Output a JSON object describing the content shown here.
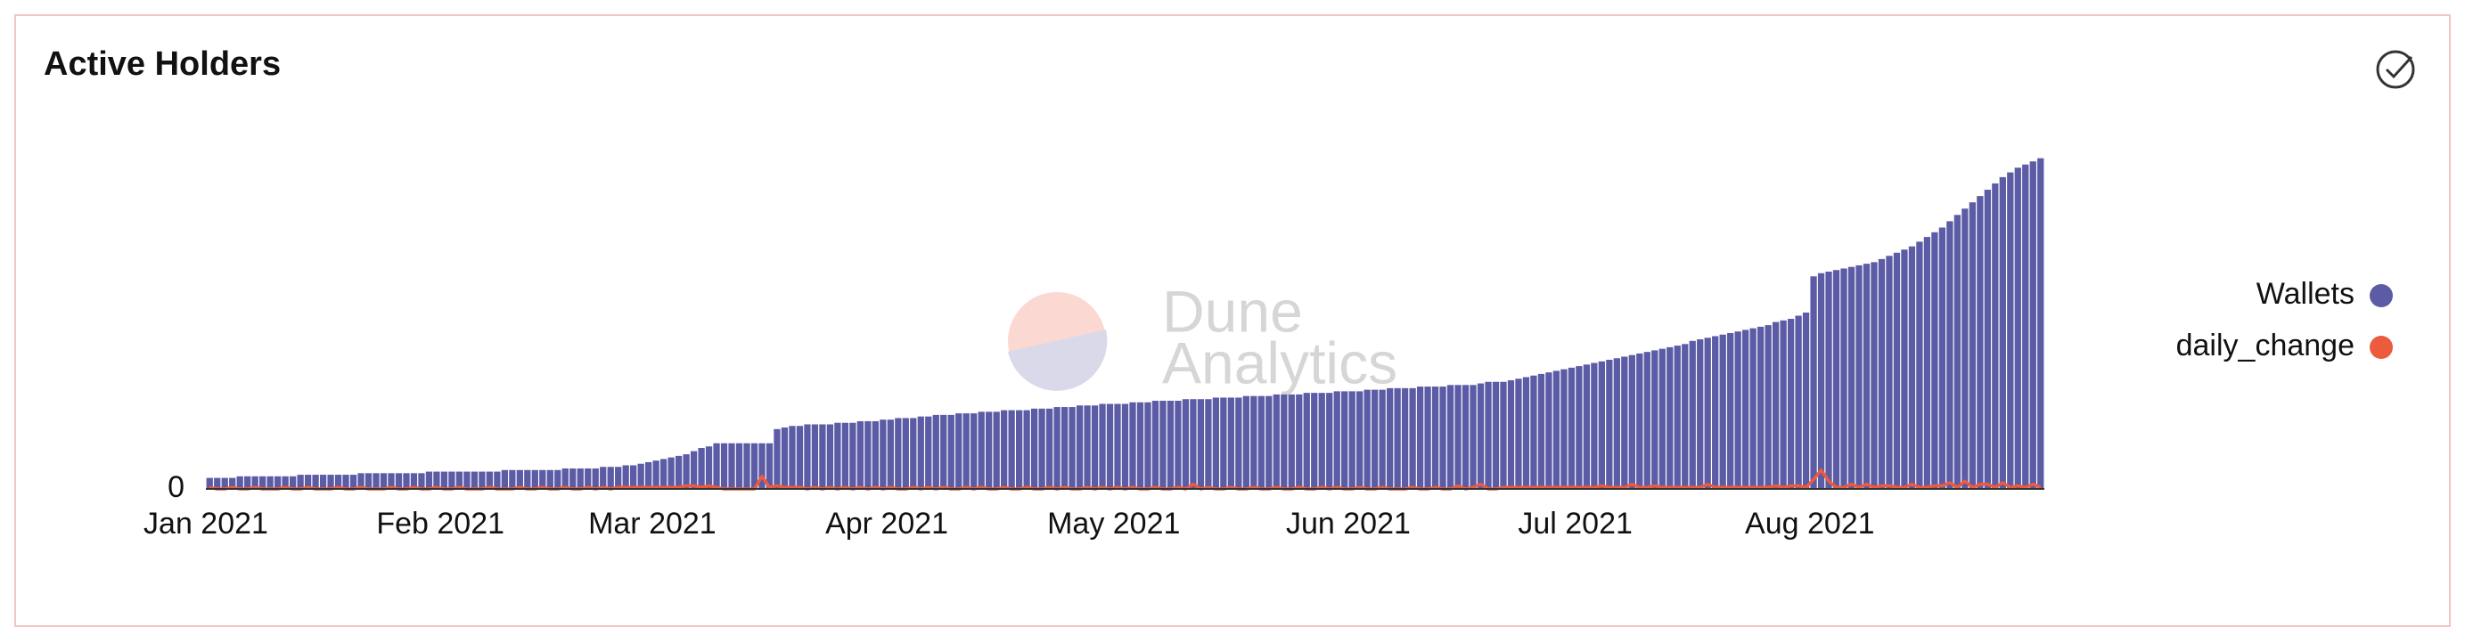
{
  "chart_data": {
    "type": "bar",
    "title": "Active Holders",
    "watermark": [
      "Dune",
      "Analytics"
    ],
    "ylim": [
      0,
      220
    ],
    "yticks": [
      0
    ],
    "legend": "right",
    "categories": [
      "Jan 2021",
      null,
      null,
      null,
      null,
      null,
      null,
      null,
      null,
      null,
      null,
      null,
      null,
      null,
      null,
      null,
      null,
      null,
      null,
      null,
      null,
      null,
      null,
      null,
      null,
      null,
      null,
      null,
      null,
      null,
      null,
      "Feb 2021",
      null,
      null,
      null,
      null,
      null,
      null,
      null,
      null,
      null,
      null,
      null,
      null,
      null,
      null,
      null,
      null,
      null,
      null,
      null,
      null,
      null,
      null,
      null,
      null,
      null,
      null,
      null,
      "Mar 2021",
      null,
      null,
      null,
      null,
      null,
      null,
      null,
      null,
      null,
      null,
      null,
      null,
      null,
      null,
      null,
      null,
      null,
      null,
      null,
      null,
      null,
      null,
      null,
      null,
      null,
      null,
      null,
      null,
      null,
      null,
      "Apr 2021",
      null,
      null,
      null,
      null,
      null,
      null,
      null,
      null,
      null,
      null,
      null,
      null,
      null,
      null,
      null,
      null,
      null,
      null,
      null,
      null,
      null,
      null,
      null,
      null,
      null,
      null,
      null,
      null,
      null,
      "May 2021",
      null,
      null,
      null,
      null,
      null,
      null,
      null,
      null,
      null,
      null,
      null,
      null,
      null,
      null,
      null,
      null,
      null,
      null,
      null,
      null,
      null,
      null,
      null,
      null,
      null,
      null,
      null,
      null,
      null,
      null,
      "Jun 2021",
      null,
      null,
      null,
      null,
      null,
      null,
      null,
      null,
      null,
      null,
      null,
      null,
      null,
      null,
      null,
      null,
      null,
      null,
      null,
      null,
      null,
      null,
      null,
      null,
      null,
      null,
      null,
      null,
      null,
      "Jul 2021",
      null,
      null,
      null,
      null,
      null,
      null,
      null,
      null,
      null,
      null,
      null,
      null,
      null,
      null,
      null,
      null,
      null,
      null,
      null,
      null,
      null,
      null,
      null,
      null,
      null,
      null,
      null,
      null,
      null,
      null,
      "Aug 2021",
      null,
      null,
      null,
      null,
      null,
      null,
      null,
      null,
      null,
      null,
      null,
      null,
      null,
      null,
      null,
      null,
      null,
      null,
      null,
      null,
      null,
      null,
      null,
      null,
      null,
      null,
      null,
      null,
      null,
      null
    ],
    "series": [
      {
        "name": "Wallets",
        "type": "bar",
        "color": "#5b5ba6",
        "values": [
          7,
          7,
          7,
          7,
          8,
          8,
          8,
          8,
          8,
          8,
          8,
          8,
          9,
          9,
          9,
          9,
          9,
          9,
          9,
          9,
          10,
          10,
          10,
          10,
          10,
          10,
          10,
          10,
          10,
          11,
          11,
          11,
          11,
          11,
          11,
          11,
          11,
          11,
          11,
          12,
          12,
          12,
          12,
          12,
          12,
          12,
          12,
          13,
          13,
          13,
          13,
          13,
          14,
          14,
          14,
          15,
          15,
          16,
          17,
          18,
          19,
          20,
          21,
          22,
          24,
          26,
          27,
          29,
          29,
          29,
          29,
          29,
          29,
          29,
          29,
          38,
          39,
          40,
          40,
          41,
          41,
          41,
          41,
          42,
          42,
          42,
          43,
          43,
          43,
          44,
          44,
          45,
          45,
          45,
          46,
          46,
          47,
          47,
          47,
          48,
          48,
          48,
          49,
          49,
          49,
          50,
          50,
          50,
          50,
          51,
          51,
          51,
          52,
          52,
          52,
          53,
          53,
          53,
          54,
          54,
          54,
          54,
          55,
          55,
          55,
          56,
          56,
          56,
          56,
          57,
          57,
          57,
          57,
          58,
          58,
          58,
          58,
          59,
          59,
          59,
          59,
          60,
          60,
          60,
          60,
          61,
          61,
          61,
          61,
          62,
          62,
          62,
          62,
          63,
          63,
          63,
          64,
          64,
          64,
          64,
          65,
          65,
          65,
          65,
          66,
          66,
          66,
          66,
          67,
          68,
          68,
          68,
          69,
          70,
          71,
          72,
          73,
          74,
          75,
          76,
          77,
          78,
          79,
          80,
          81,
          82,
          83,
          84,
          85,
          86,
          87,
          88,
          89,
          90,
          91,
          92,
          94,
          95,
          96,
          97,
          98,
          99,
          100,
          101,
          102,
          103,
          104,
          106,
          107,
          108,
          110,
          112,
          135,
          137,
          138,
          139,
          140,
          141,
          142,
          143,
          144,
          146,
          148,
          150,
          152,
          154,
          157,
          160,
          163,
          166,
          170,
          174,
          178,
          182,
          186,
          190,
          194,
          198,
          201,
          204,
          206,
          208,
          210
        ]
      },
      {
        "name": "daily_change",
        "type": "line",
        "color": "#ec5b3d",
        "values": [
          1,
          0,
          0,
          1,
          0,
          0,
          1,
          0,
          0,
          0,
          1,
          0,
          0,
          1,
          0,
          0,
          0,
          1,
          0,
          0,
          1,
          0,
          0,
          0,
          1,
          0,
          0,
          1,
          0,
          0,
          1,
          0,
          0,
          1,
          0,
          0,
          0,
          1,
          0,
          0,
          0,
          1,
          0,
          0,
          1,
          0,
          0,
          1,
          0,
          0,
          1,
          0,
          1,
          0,
          1,
          1,
          1,
          1,
          1,
          1,
          1,
          1,
          1,
          2,
          2,
          1,
          2,
          1,
          0,
          0,
          0,
          0,
          0,
          8,
          1,
          2,
          1,
          1,
          1,
          0,
          1,
          0,
          1,
          0,
          1,
          0,
          1,
          0,
          1,
          0,
          1,
          0,
          0,
          1,
          0,
          1,
          0,
          1,
          0,
          0,
          1,
          0,
          1,
          0,
          0,
          1,
          0,
          0,
          1,
          0,
          0,
          1,
          0,
          1,
          0,
          0,
          1,
          0,
          1,
          0,
          1,
          0,
          1,
          0,
          0,
          1,
          0,
          0,
          1,
          0,
          3,
          0,
          1,
          0,
          0,
          1,
          0,
          0,
          1,
          0,
          0,
          1,
          0,
          0,
          1,
          0,
          0,
          1,
          0,
          1,
          0,
          0,
          1,
          0,
          0,
          1,
          0,
          0,
          0,
          1,
          0,
          0,
          1,
          0,
          0,
          2,
          0,
          1,
          3,
          0,
          0,
          1,
          1,
          1,
          1,
          1,
          1,
          1,
          1,
          1,
          1,
          1,
          1,
          1,
          2,
          1,
          1,
          1,
          3,
          1,
          1,
          2,
          1,
          1,
          1,
          1,
          1,
          1,
          3,
          1,
          1,
          1,
          1,
          1,
          1,
          1,
          1,
          2,
          1,
          2,
          2,
          1,
          6,
          12,
          5,
          1,
          1,
          3,
          1,
          3,
          1,
          2,
          2,
          1,
          1,
          3,
          1,
          1,
          2,
          2,
          4,
          1,
          5,
          1,
          3,
          3,
          1,
          4,
          1,
          2,
          1,
          3,
          1
        ]
      }
    ]
  }
}
